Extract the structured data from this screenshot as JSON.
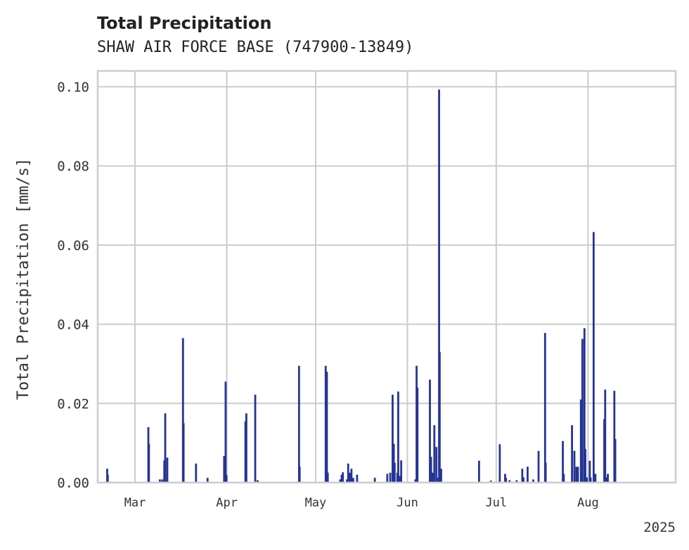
{
  "chart_data": {
    "type": "bar",
    "title": "Total Precipitation",
    "subtitle": "SHAW AIR FORCE BASE (747900-13849)",
    "xlabel": "",
    "ylabel": "Total Precipitation [mm/s]",
    "year_label": "2025",
    "ylim": [
      0,
      0.104
    ],
    "yticks": [
      {
        "value": 0.0,
        "label": "0.00"
      },
      {
        "value": 0.02,
        "label": "0.02"
      },
      {
        "value": 0.04,
        "label": "0.04"
      },
      {
        "value": 0.06,
        "label": "0.06"
      },
      {
        "value": 0.08,
        "label": "0.08"
      },
      {
        "value": 0.1,
        "label": "0.10"
      }
    ],
    "xlim": [
      19.4,
      214.6
    ],
    "xticks": [
      {
        "day": 32,
        "label": "Mar"
      },
      {
        "day": 63,
        "label": "Apr"
      },
      {
        "day": 93,
        "label": "May"
      },
      {
        "day": 124,
        "label": "Jun"
      },
      {
        "day": 154,
        "label": "Jul"
      },
      {
        "day": 185,
        "label": "Aug"
      }
    ],
    "x_unit": "days since 2025-02-01",
    "grid": true,
    "color": "#253494",
    "points": [
      [
        22.6,
        0.0035
      ],
      [
        22.8,
        0.002
      ],
      [
        36.5,
        0.014
      ],
      [
        36.7,
        0.0098
      ],
      [
        40.4,
        0.0008
      ],
      [
        41.2,
        0.0008
      ],
      [
        41.9,
        0.0056
      ],
      [
        42.2,
        0.0175
      ],
      [
        42.9,
        0.0063
      ],
      [
        48.2,
        0.0365
      ],
      [
        48.4,
        0.015
      ],
      [
        52.6,
        0.0048
      ],
      [
        56.5,
        0.0012
      ],
      [
        62.1,
        0.0067
      ],
      [
        62.6,
        0.0255
      ],
      [
        62.9,
        0.0019
      ],
      [
        69.3,
        0.0155
      ],
      [
        69.6,
        0.0175
      ],
      [
        72.6,
        0.0222
      ],
      [
        73.4,
        0.0006
      ],
      [
        87.4,
        0.0295
      ],
      [
        87.6,
        0.004
      ],
      [
        96.4,
        0.0295
      ],
      [
        96.8,
        0.028
      ],
      [
        97.1,
        0.0025
      ],
      [
        101.3,
        0.0008
      ],
      [
        101.8,
        0.002
      ],
      [
        102.2,
        0.0026
      ],
      [
        103.6,
        0.0008
      ],
      [
        104.0,
        0.0048
      ],
      [
        104.5,
        0.0025
      ],
      [
        105.1,
        0.0035
      ],
      [
        105.7,
        0.0012
      ],
      [
        107.0,
        0.002
      ],
      [
        113.0,
        0.0012
      ],
      [
        117.2,
        0.0022
      ],
      [
        118.2,
        0.0025
      ],
      [
        119.0,
        0.0222
      ],
      [
        119.4,
        0.0098
      ],
      [
        119.7,
        0.005
      ],
      [
        120.6,
        0.0025
      ],
      [
        120.9,
        0.023
      ],
      [
        121.5,
        0.0017
      ],
      [
        121.9,
        0.0056
      ],
      [
        126.7,
        0.0008
      ],
      [
        127.1,
        0.0295
      ],
      [
        127.4,
        0.024
      ],
      [
        131.6,
        0.026
      ],
      [
        132.0,
        0.0065
      ],
      [
        132.6,
        0.0025
      ],
      [
        133.1,
        0.0145
      ],
      [
        133.8,
        0.009
      ],
      [
        134.3,
        0.0012
      ],
      [
        134.7,
        0.0993
      ],
      [
        134.9,
        0.033
      ],
      [
        135.4,
        0.0035
      ],
      [
        148.2,
        0.0055
      ],
      [
        152.2,
        0.0005
      ],
      [
        155.2,
        0.0097
      ],
      [
        157.0,
        0.0022
      ],
      [
        157.3,
        0.0012
      ],
      [
        158.5,
        0.0006
      ],
      [
        160.9,
        0.0006
      ],
      [
        162.8,
        0.0035
      ],
      [
        163.2,
        0.0013
      ],
      [
        164.6,
        0.004
      ],
      [
        166.5,
        0.0008
      ],
      [
        168.3,
        0.008
      ],
      [
        170.5,
        0.0378
      ],
      [
        170.7,
        0.005
      ],
      [
        176.5,
        0.0105
      ],
      [
        176.8,
        0.0022
      ],
      [
        179.6,
        0.0145
      ],
      [
        180.4,
        0.008
      ],
      [
        181.1,
        0.004
      ],
      [
        181.6,
        0.004
      ],
      [
        182.6,
        0.021
      ],
      [
        183.1,
        0.0363
      ],
      [
        183.8,
        0.039
      ],
      [
        184.1,
        0.0085
      ],
      [
        184.6,
        0.0013
      ],
      [
        185.6,
        0.0055
      ],
      [
        185.9,
        0.0013
      ],
      [
        186.9,
        0.0633
      ],
      [
        187.5,
        0.0022
      ],
      [
        190.5,
        0.016
      ],
      [
        190.8,
        0.0235
      ],
      [
        191.2,
        0.0013
      ],
      [
        191.7,
        0.0022
      ],
      [
        193.9,
        0.0232
      ],
      [
        194.2,
        0.011
      ]
    ]
  }
}
